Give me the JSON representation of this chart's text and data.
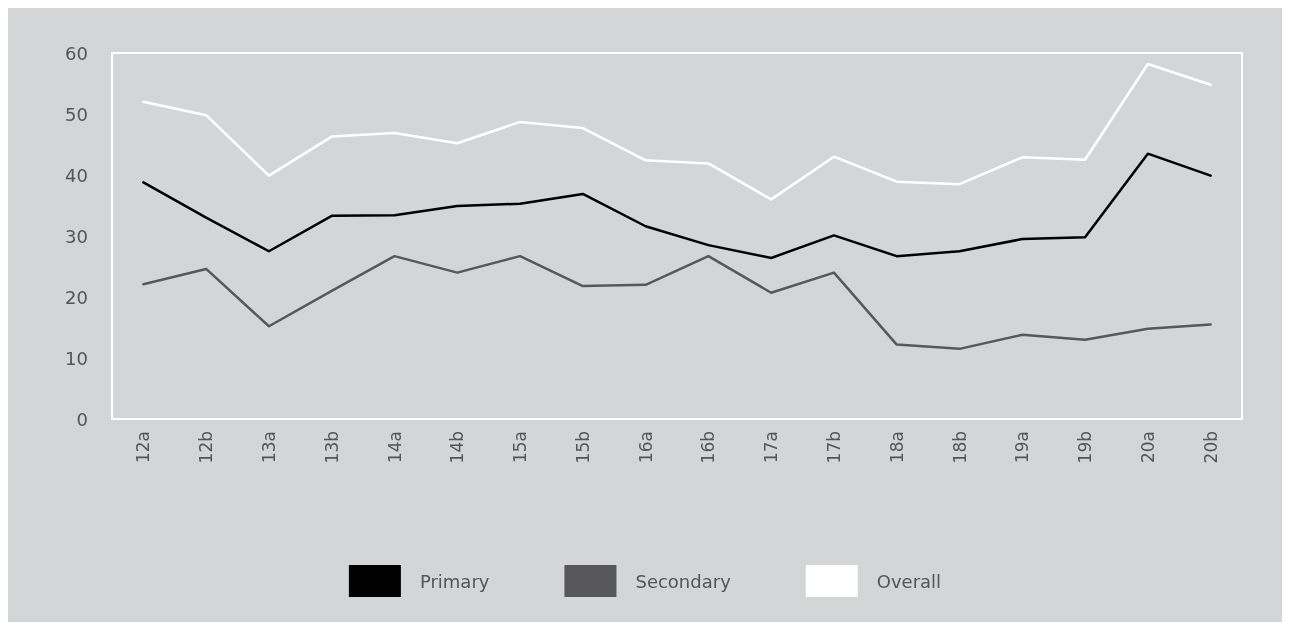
{
  "chart_data": {
    "type": "line",
    "categories": [
      "12a",
      "12b",
      "13a",
      "13b",
      "14a",
      "14b",
      "15a",
      "15b",
      "16a",
      "16b",
      "17a",
      "17b",
      "18a",
      "18b",
      "19a",
      "19b",
      "20a",
      "20b"
    ],
    "series": [
      {
        "name": "Primary",
        "color": "#000000",
        "values": [
          38.8,
          33,
          27.5,
          33.3,
          33.4,
          34.9,
          35.3,
          36.9,
          31.6,
          28.5,
          26.4,
          30.1,
          26.7,
          27.5,
          29.5,
          29.8,
          43.5,
          39.9
        ]
      },
      {
        "name": "Secondary",
        "color": "#58585a",
        "values": [
          22.1,
          24.6,
          15.2,
          21,
          26.7,
          24,
          26.7,
          21.8,
          22,
          26.7,
          20.7,
          24,
          12.2,
          11.5,
          13.8,
          13,
          14.8,
          15.5
        ]
      },
      {
        "name": "Overall",
        "color": "#ffffff",
        "values": [
          52,
          49.8,
          39.9,
          46.3,
          46.9,
          45.2,
          48.7,
          47.7,
          42.4,
          41.9,
          36,
          43,
          38.9,
          38.5,
          42.9,
          42.5,
          58.2,
          54.8
        ]
      }
    ],
    "ylim": [
      0,
      60
    ],
    "yticks": [
      0,
      10,
      20,
      30,
      40,
      50,
      60
    ],
    "grid": false,
    "legend": "bottom",
    "marker": "none",
    "line_style": "solid"
  }
}
